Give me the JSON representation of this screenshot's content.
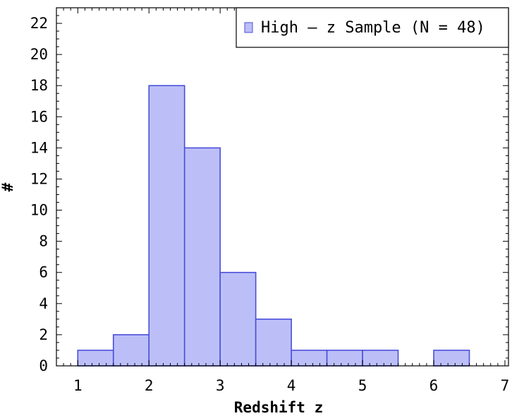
{
  "chart_data": {
    "type": "bar",
    "subtype": "histogram",
    "xlabel": "Redshift z",
    "ylabel": "#",
    "xlim": [
      0.7,
      7.05
    ],
    "ylim": [
      0,
      23
    ],
    "xticks": [
      1,
      2,
      3,
      4,
      5,
      6,
      7
    ],
    "yticks": [
      0,
      2,
      4,
      6,
      8,
      10,
      12,
      14,
      16,
      18,
      20,
      22
    ],
    "bin_width": 0.5,
    "bins": [
      {
        "x0": 1.0,
        "x1": 1.5,
        "count": 1
      },
      {
        "x0": 1.5,
        "x1": 2.0,
        "count": 2
      },
      {
        "x0": 2.0,
        "x1": 2.5,
        "count": 18
      },
      {
        "x0": 2.5,
        "x1": 3.0,
        "count": 14
      },
      {
        "x0": 3.0,
        "x1": 3.5,
        "count": 6
      },
      {
        "x0": 3.5,
        "x1": 4.0,
        "count": 3
      },
      {
        "x0": 4.0,
        "x1": 4.5,
        "count": 1
      },
      {
        "x0": 4.5,
        "x1": 5.0,
        "count": 1
      },
      {
        "x0": 5.0,
        "x1": 5.5,
        "count": 1
      },
      {
        "x0": 5.5,
        "x1": 6.0,
        "count": 0
      },
      {
        "x0": 6.0,
        "x1": 6.5,
        "count": 1
      }
    ],
    "series": [
      {
        "name": "High — z Sample (N = 48)"
      }
    ],
    "legend_position": "top-right",
    "grid": false,
    "colors": {
      "fill": "#bcbff7",
      "edge": "#4a4fd9",
      "axis": "#000000"
    }
  }
}
